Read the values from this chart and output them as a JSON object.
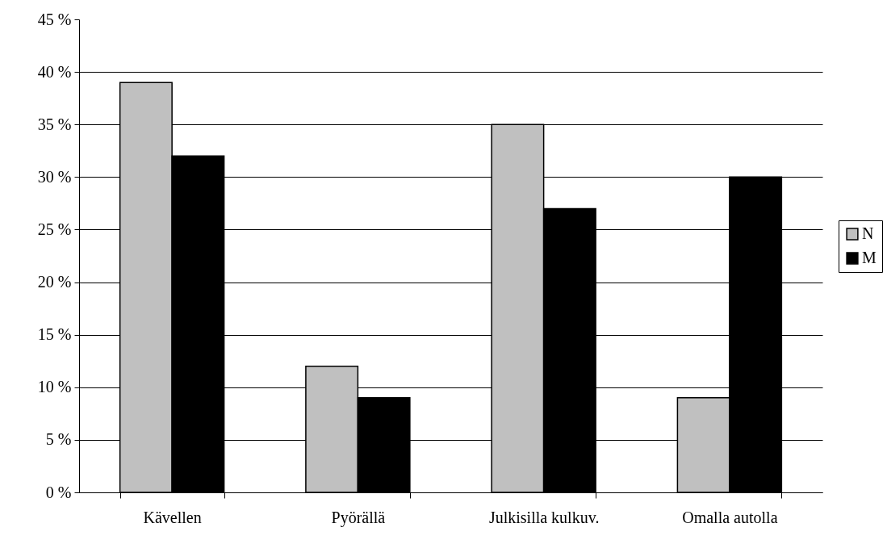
{
  "chart_data": {
    "type": "bar",
    "categories": [
      "Kävellen",
      "Pyörällä",
      "Julkisilla kulkuv.",
      "Omalla autolla"
    ],
    "series": [
      {
        "name": "N",
        "color": "#c0c0c0",
        "values": [
          39,
          12,
          35,
          9
        ]
      },
      {
        "name": "M",
        "color": "#000000",
        "values": [
          32,
          9,
          27,
          30
        ]
      }
    ],
    "ylim": [
      0,
      45
    ],
    "yticks": [
      {
        "value": 0,
        "label": "0 %"
      },
      {
        "value": 5,
        "label": "5 %"
      },
      {
        "value": 10,
        "label": "10 %"
      },
      {
        "value": 15,
        "label": "15 %"
      },
      {
        "value": 20,
        "label": "20 %"
      },
      {
        "value": 25,
        "label": "25 %"
      },
      {
        "value": 30,
        "label": "30 %"
      },
      {
        "value": 35,
        "label": "35 %"
      },
      {
        "value": 40,
        "label": "40 %"
      },
      {
        "value": 45,
        "label": "45 %"
      }
    ],
    "grid": "y",
    "legend": "right"
  }
}
